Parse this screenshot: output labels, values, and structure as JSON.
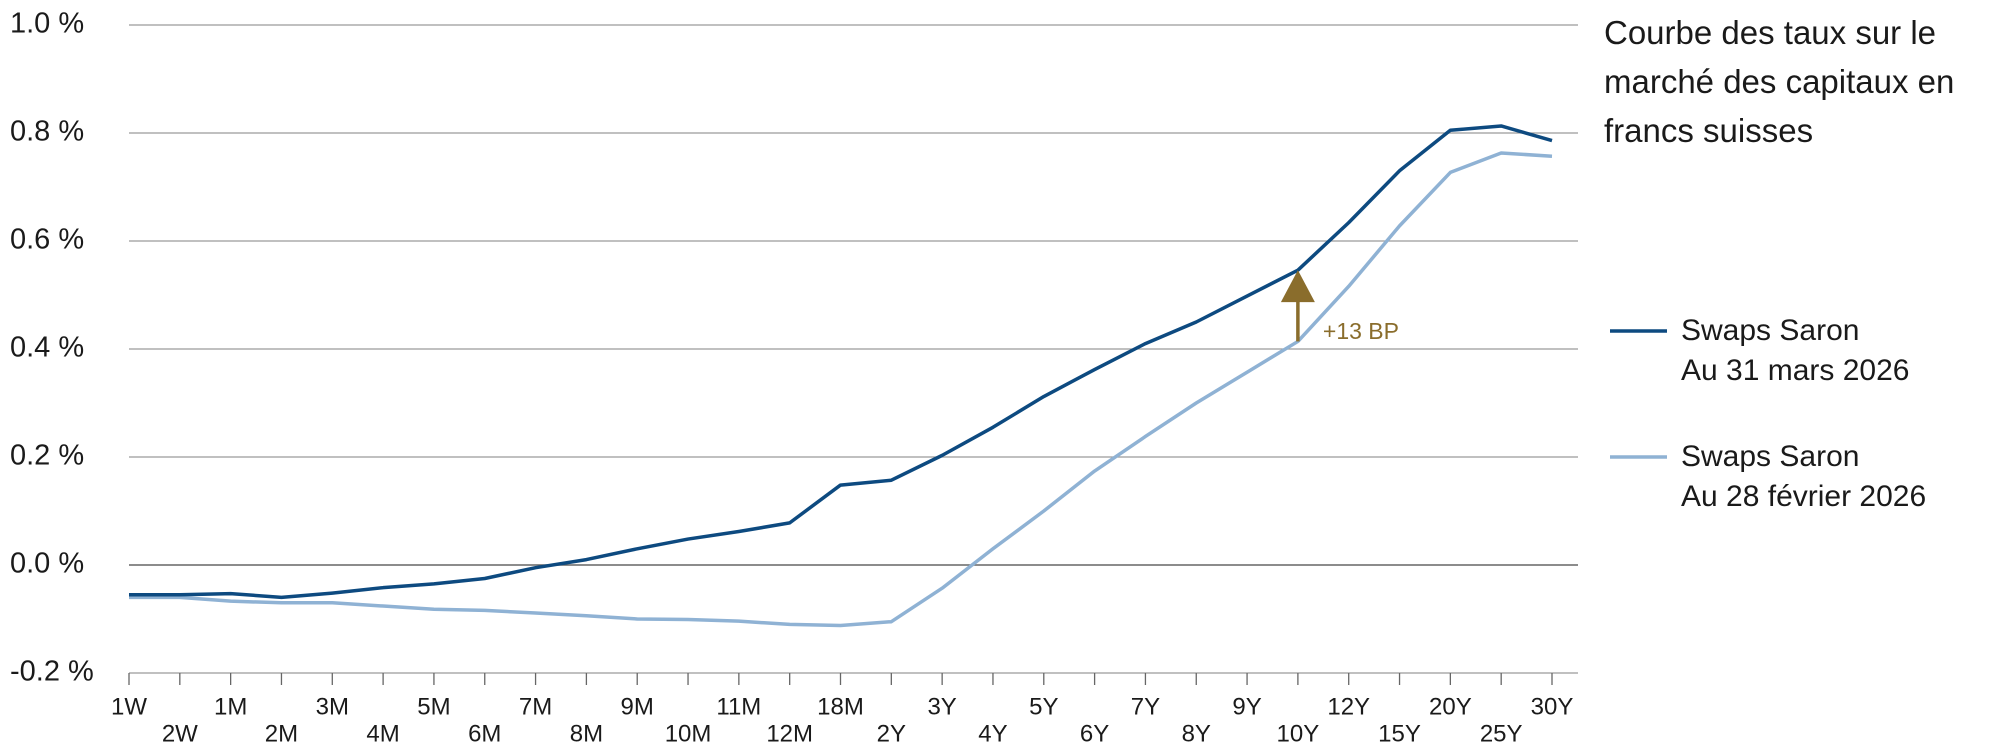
{
  "chart_data": {
    "type": "line",
    "title": "Courbe des taux sur le marché des capitaux en francs suisses",
    "categories": [
      "1W",
      "2W",
      "1M",
      "2M",
      "3M",
      "4M",
      "5M",
      "6M",
      "7M",
      "8M",
      "9M",
      "10M",
      "11M",
      "12M",
      "18M",
      "2Y",
      "3Y",
      "4Y",
      "5Y",
      "6Y",
      "7Y",
      "8Y",
      "9Y",
      "10Y",
      "12Y",
      "15Y",
      "20Y",
      "25Y",
      "30Y"
    ],
    "series": [
      {
        "name": "Swaps Saron",
        "date": "Au 31 mars 2026",
        "color": "#0d4a80",
        "values": [
          -0.055,
          -0.055,
          -0.053,
          -0.06,
          -0.052,
          -0.042,
          -0.035,
          -0.025,
          -0.005,
          0.01,
          0.03,
          0.048,
          0.062,
          0.078,
          0.148,
          0.157,
          0.203,
          0.255,
          0.312,
          0.362,
          0.41,
          0.45,
          0.498,
          0.546,
          0.634,
          0.73,
          0.805,
          0.813,
          0.786
        ]
      },
      {
        "name": "Swaps Saron",
        "date": "Au 28 février 2026",
        "color": "#8fb2d4",
        "values": [
          -0.06,
          -0.06,
          -0.067,
          -0.07,
          -0.07,
          -0.076,
          -0.082,
          -0.084,
          -0.089,
          -0.094,
          -0.1,
          -0.101,
          -0.104,
          -0.11,
          -0.112,
          -0.105,
          -0.043,
          0.03,
          0.1,
          0.174,
          0.238,
          0.3,
          0.357,
          0.414,
          0.516,
          0.628,
          0.727,
          0.763,
          0.757
        ]
      }
    ],
    "ylim": [
      -0.2,
      1.0
    ],
    "yticks": [
      {
        "value": -0.2,
        "label": "-0.2 %"
      },
      {
        "value": 0,
        "label": "0.0 %"
      },
      {
        "value": 0.2,
        "label": "0.2 %"
      },
      {
        "value": 0.4,
        "label": "0.4 %"
      },
      {
        "value": 0.6,
        "label": "0.6 %"
      },
      {
        "value": 0.8,
        "label": "0.8 %"
      },
      {
        "value": 1.0,
        "label": "1.0 %"
      }
    ],
    "grid": true,
    "annotation": {
      "text": "+13 BP",
      "at": "10Y",
      "color": "#8a6d2c"
    }
  }
}
